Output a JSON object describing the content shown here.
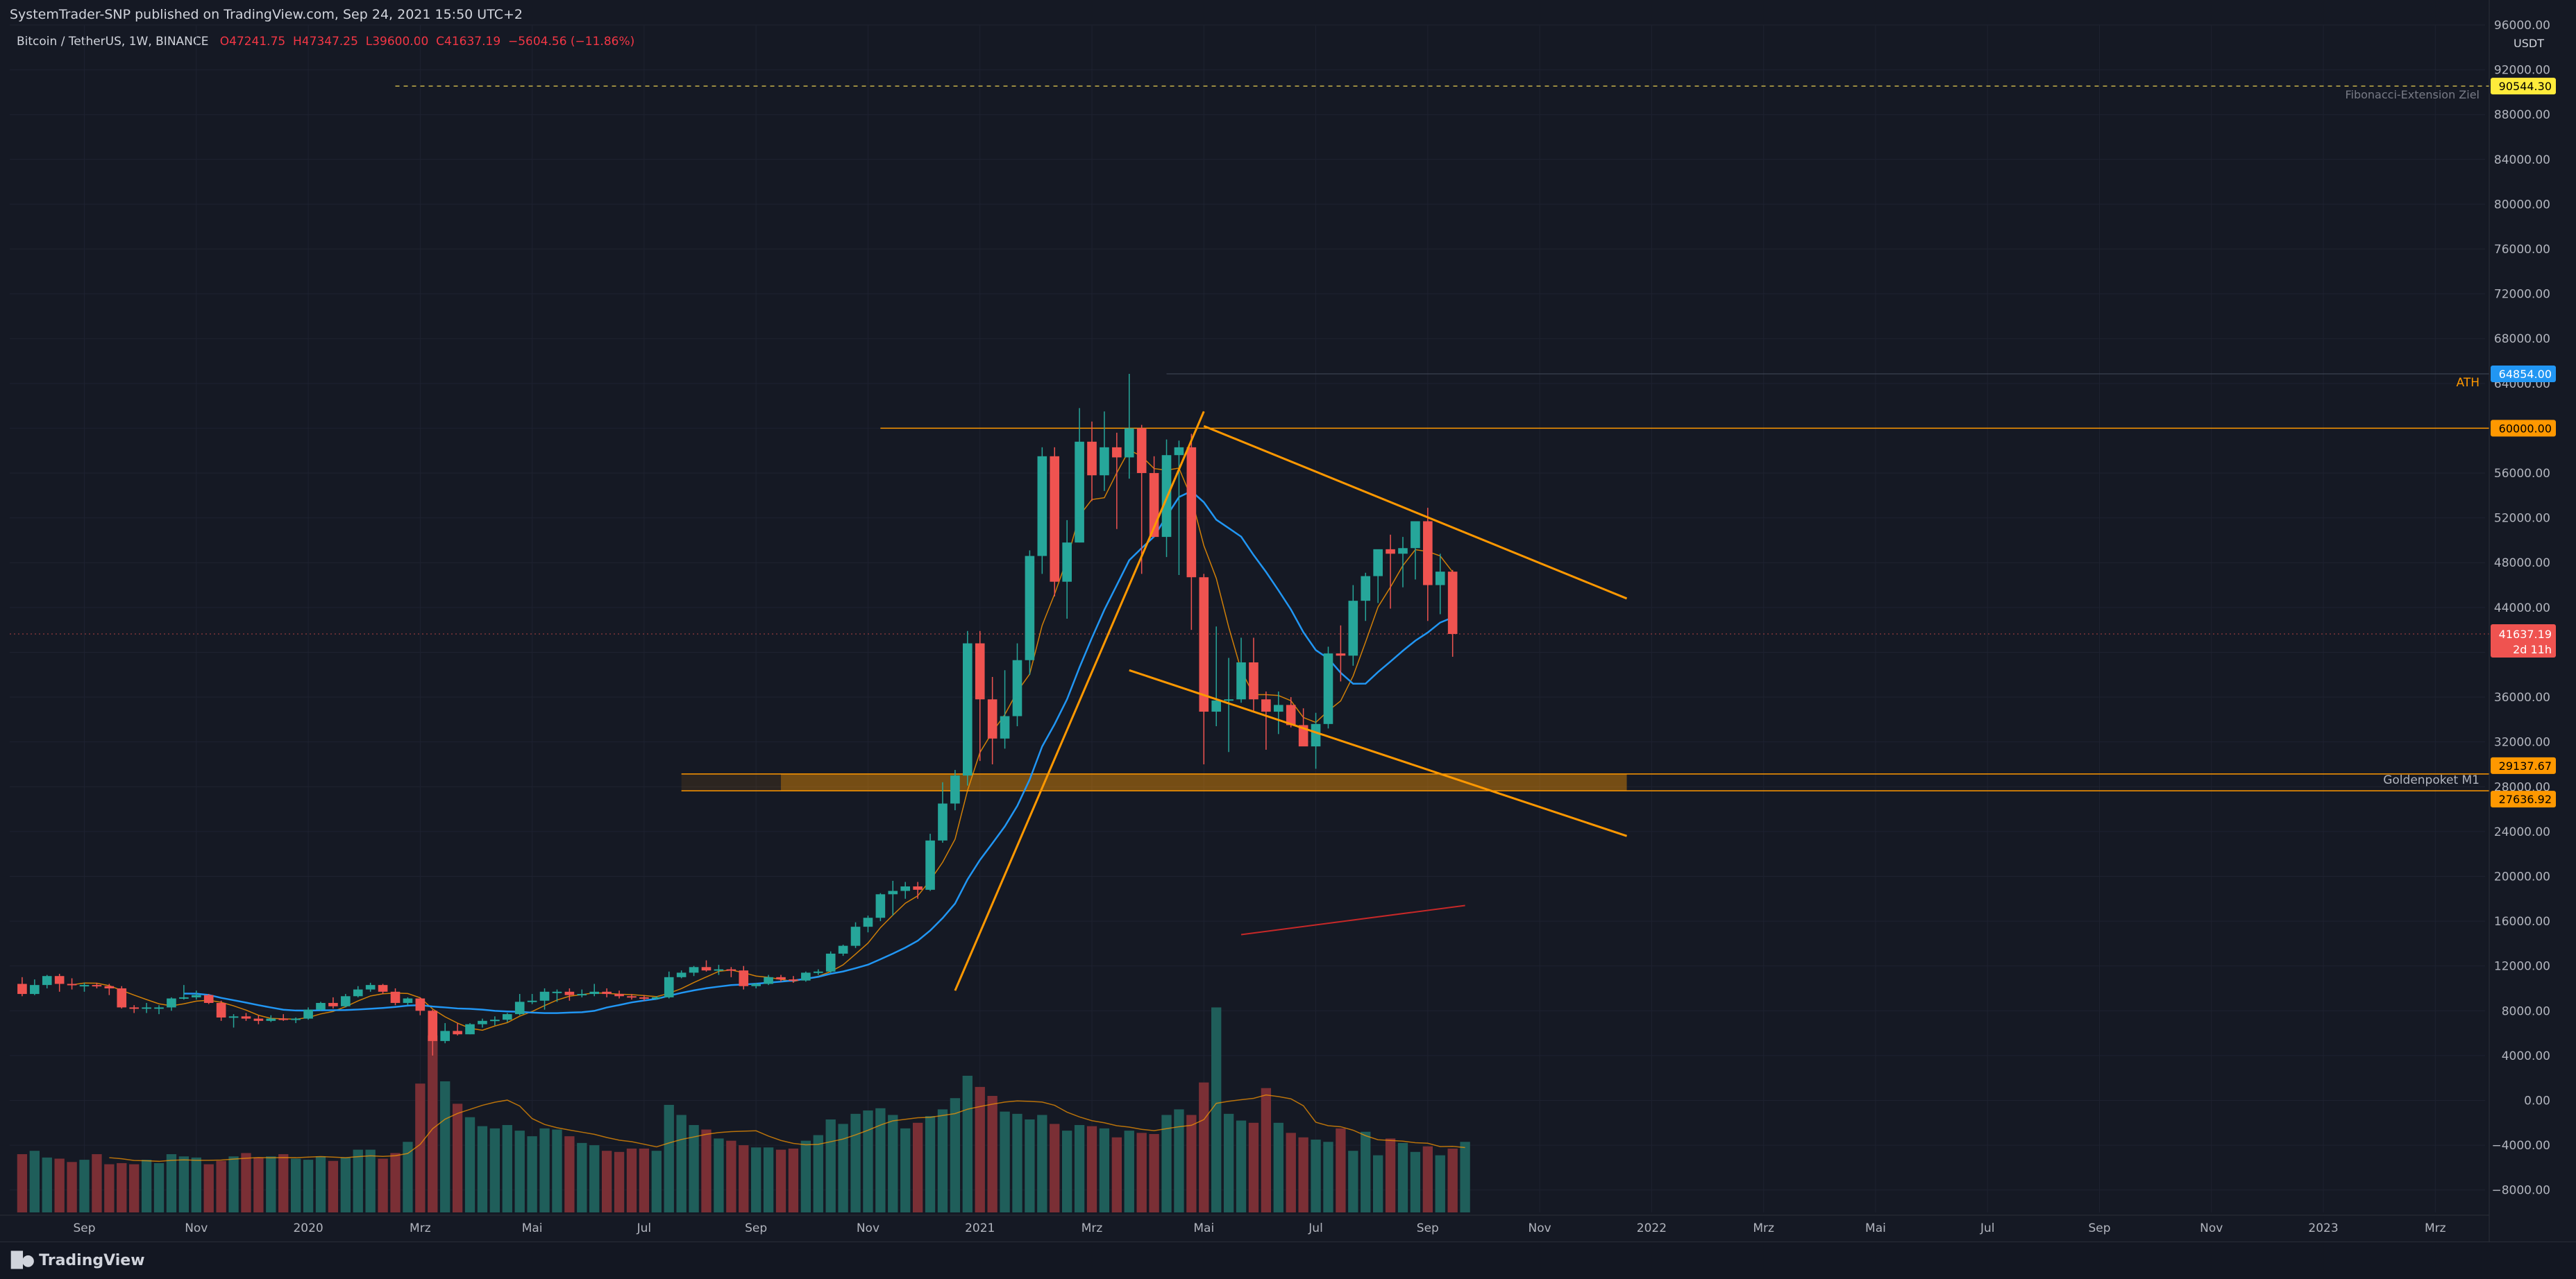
{
  "header": {
    "published": "SystemTrader-SNP published on TradingView.com, Sep 24, 2021 15:50 UTC+2",
    "symbol": "Bitcoin / TetherUS, 1W, BINANCE",
    "open": "O47241.75",
    "high": "H47347.25",
    "low": "L39600.00",
    "close": "C41637.19",
    "change": "−5604.56 (−11.86%)"
  },
  "footer": {
    "brand": "TradingView"
  },
  "chart_data": {
    "type": "candlestick",
    "currency": "USDT",
    "timeframe": "1W",
    "ylim": [
      -10000,
      96000
    ],
    "y_ticks": [
      -8000,
      -4000,
      0,
      4000,
      8000,
      12000,
      16000,
      20000,
      24000,
      28000,
      32000,
      36000,
      40000,
      44000,
      48000,
      52000,
      56000,
      60000,
      64000,
      68000,
      72000,
      76000,
      80000,
      84000,
      88000,
      92000,
      96000
    ],
    "y_tick_labels": [
      "−8000.00",
      "−4000.00",
      "0.00",
      "4000.00",
      "8000.00",
      "12000.00",
      "16000.00",
      "20000.00",
      "24000.00",
      "28000.00",
      "32000.00",
      "36000.00",
      "40000.00",
      "44000.00",
      "48000.00",
      "52000.00",
      "56000.00",
      "60000.00",
      "64000.00",
      "68000.00",
      "72000.00",
      "76000.00",
      "80000.00",
      "84000.00",
      "88000.00",
      "92000.00",
      "96000.00"
    ],
    "x_ticks": [
      {
        "label": "Sep",
        "week": 5
      },
      {
        "label": "Nov",
        "week": 14
      },
      {
        "label": "2020",
        "week": 23
      },
      {
        "label": "Mrz",
        "week": 32
      },
      {
        "label": "Mai",
        "week": 41
      },
      {
        "label": "Jul",
        "week": 50
      },
      {
        "label": "Sep",
        "week": 59
      },
      {
        "label": "Nov",
        "week": 68
      },
      {
        "label": "2021",
        "week": 77
      },
      {
        "label": "Mrz",
        "week": 86
      },
      {
        "label": "Mai",
        "week": 95
      },
      {
        "label": "Jul",
        "week": 104
      },
      {
        "label": "Sep",
        "week": 113
      },
      {
        "label": "Nov",
        "week": 122
      },
      {
        "label": "2022",
        "week": 131
      },
      {
        "label": "Mrz",
        "week": 140
      },
      {
        "label": "Mai",
        "week": 149
      },
      {
        "label": "Jul",
        "week": 158
      },
      {
        "label": "Sep",
        "week": 167
      },
      {
        "label": "Nov",
        "week": 176
      },
      {
        "label": "2023",
        "week": 185
      },
      {
        "label": "Mrz",
        "week": 194
      }
    ],
    "x_range_weeks": [
      -1,
      198
    ],
    "candles_ohlc": [
      [
        10400,
        11000,
        9300,
        9500
      ],
      [
        9500,
        10800,
        9400,
        10300
      ],
      [
        10300,
        11200,
        10000,
        11100
      ],
      [
        11100,
        11300,
        9700,
        10400
      ],
      [
        10400,
        10900,
        9900,
        10300
      ],
      [
        10300,
        10500,
        9700,
        10300
      ],
      [
        10300,
        10500,
        10000,
        10200
      ],
      [
        10200,
        10400,
        9400,
        10000
      ],
      [
        10000,
        10200,
        8200,
        8300
      ],
      [
        8300,
        8500,
        7800,
        8200
      ],
      [
        8200,
        8700,
        7800,
        8300
      ],
      [
        8300,
        8500,
        7700,
        8300
      ],
      [
        8300,
        9200,
        8000,
        9100
      ],
      [
        9100,
        10300,
        9000,
        9200
      ],
      [
        9200,
        9800,
        9000,
        9400
      ],
      [
        9400,
        9500,
        8600,
        8700
      ],
      [
        8700,
        8900,
        7100,
        7400
      ],
      [
        7400,
        7700,
        6500,
        7500
      ],
      [
        7500,
        7800,
        7100,
        7300
      ],
      [
        7300,
        7600,
        6800,
        7100
      ],
      [
        7100,
        7600,
        7000,
        7300
      ],
      [
        7300,
        7700,
        7100,
        7200
      ],
      [
        7200,
        7400,
        6900,
        7300
      ],
      [
        7300,
        8300,
        7200,
        8100
      ],
      [
        8100,
        8800,
        8000,
        8700
      ],
      [
        8700,
        9200,
        8200,
        8400
      ],
      [
        8400,
        9500,
        8300,
        9300
      ],
      [
        9300,
        10200,
        9200,
        9900
      ],
      [
        9900,
        10500,
        9700,
        10300
      ],
      [
        10300,
        10400,
        9500,
        9700
      ],
      [
        9700,
        10000,
        8500,
        8700
      ],
      [
        8700,
        9200,
        8500,
        9100
      ],
      [
        9100,
        9200,
        7600,
        8000
      ],
      [
        8000,
        8100,
        4000,
        5300
      ],
      [
        5300,
        6900,
        5100,
        6200
      ],
      [
        6200,
        6900,
        5800,
        5900
      ],
      [
        5900,
        6900,
        5900,
        6800
      ],
      [
        6800,
        7300,
        6500,
        7100
      ],
      [
        7100,
        7500,
        6700,
        7200
      ],
      [
        7200,
        7800,
        7000,
        7700
      ],
      [
        7700,
        9500,
        7600,
        8800
      ],
      [
        8800,
        9500,
        8600,
        8900
      ],
      [
        8900,
        10000,
        8100,
        9700
      ],
      [
        9700,
        9900,
        8800,
        9700
      ],
      [
        9700,
        10000,
        8900,
        9400
      ],
      [
        9400,
        9900,
        9200,
        9500
      ],
      [
        9500,
        10400,
        9300,
        9700
      ],
      [
        9700,
        10000,
        9200,
        9500
      ],
      [
        9500,
        9800,
        9100,
        9300
      ],
      [
        9300,
        9500,
        9000,
        9200
      ],
      [
        9200,
        9400,
        8900,
        9100
      ],
      [
        9100,
        9300,
        9000,
        9200
      ],
      [
        9200,
        11500,
        9100,
        11000
      ],
      [
        11000,
        11600,
        10900,
        11400
      ],
      [
        11400,
        12000,
        11100,
        11900
      ],
      [
        11900,
        12500,
        11500,
        11600
      ],
      [
        11600,
        12100,
        11200,
        11700
      ],
      [
        11700,
        11900,
        11000,
        11600
      ],
      [
        11600,
        12000,
        9900,
        10200
      ],
      [
        10200,
        10500,
        10000,
        10400
      ],
      [
        10400,
        11200,
        10300,
        11000
      ],
      [
        11000,
        11200,
        10600,
        10800
      ],
      [
        10800,
        11100,
        10500,
        10700
      ],
      [
        10700,
        11500,
        10600,
        11400
      ],
      [
        11400,
        11700,
        11200,
        11500
      ],
      [
        11500,
        13300,
        11400,
        13100
      ],
      [
        13100,
        13900,
        12900,
        13800
      ],
      [
        13800,
        15900,
        13600,
        15500
      ],
      [
        15500,
        16500,
        15000,
        16300
      ],
      [
        16300,
        18500,
        16000,
        18400
      ],
      [
        18400,
        19600,
        16500,
        18700
      ],
      [
        18700,
        19500,
        18000,
        19100
      ],
      [
        19100,
        19500,
        18000,
        18800
      ],
      [
        18800,
        23800,
        18700,
        23200
      ],
      [
        23200,
        28400,
        23000,
        26500
      ],
      [
        26500,
        29500,
        25900,
        29000
      ],
      [
        29000,
        41900,
        28100,
        40800
      ],
      [
        40800,
        41900,
        30300,
        35800
      ],
      [
        35800,
        37800,
        30000,
        32300
      ],
      [
        32300,
        38400,
        31400,
        34300
      ],
      [
        34300,
        40800,
        33400,
        39300
      ],
      [
        39300,
        49100,
        38000,
        48600
      ],
      [
        48600,
        58300,
        47000,
        57500
      ],
      [
        57500,
        58300,
        45000,
        46300
      ],
      [
        46300,
        51800,
        43000,
        49800
      ],
      [
        49800,
        61800,
        49800,
        58800
      ],
      [
        58800,
        60600,
        53500,
        55800
      ],
      [
        55800,
        61500,
        54400,
        58300
      ],
      [
        58300,
        59600,
        51000,
        57400
      ],
      [
        57400,
        64854,
        55500,
        60000
      ],
      [
        60000,
        60300,
        47000,
        56000
      ],
      [
        56000,
        57500,
        50500,
        50300
      ],
      [
        50300,
        59000,
        48500,
        57600
      ],
      [
        57600,
        58900,
        46900,
        58300
      ],
      [
        58300,
        59500,
        42000,
        46700
      ],
      [
        46700,
        47000,
        30000,
        34700
      ],
      [
        34700,
        42300,
        33400,
        35700
      ],
      [
        35700,
        39500,
        31100,
        35800
      ],
      [
        35800,
        41300,
        35500,
        39100
      ],
      [
        39100,
        41300,
        34800,
        35800
      ],
      [
        35800,
        36500,
        31300,
        34700
      ],
      [
        34700,
        36500,
        32700,
        35300
      ],
      [
        35300,
        36000,
        33300,
        33500
      ],
      [
        33500,
        35000,
        32100,
        31600
      ],
      [
        31600,
        34600,
        29600,
        33600
      ],
      [
        33600,
        40500,
        33200,
        39900
      ],
      [
        39900,
        42400,
        37400,
        39700
      ],
      [
        39700,
        46000,
        38800,
        44600
      ],
      [
        44600,
        47100,
        42800,
        46800
      ],
      [
        46800,
        48100,
        44400,
        49200
      ],
      [
        49200,
        50500,
        43900,
        48800
      ],
      [
        48800,
        50300,
        45800,
        49300
      ],
      [
        49300,
        50600,
        46500,
        51700
      ],
      [
        51700,
        52900,
        42800,
        46000
      ],
      [
        46000,
        48800,
        43400,
        47200
      ],
      [
        47200,
        47347.25,
        39600,
        41637.19
      ]
    ],
    "volume": [
      5200,
      5500,
      4900,
      4800,
      4500,
      4700,
      5200,
      4300,
      4400,
      4300,
      4700,
      4400,
      5200,
      5000,
      4900,
      4300,
      4600,
      5000,
      5300,
      4900,
      5000,
      5200,
      4800,
      4700,
      5000,
      4600,
      4900,
      5600,
      5600,
      4800,
      5300,
      6300,
      11500,
      15800,
      11700,
      9700,
      8500,
      7700,
      7500,
      7800,
      7300,
      6800,
      7500,
      7400,
      6800,
      6200,
      6000,
      5500,
      5400,
      5700,
      5700,
      5500,
      9600,
      8700,
      7800,
      7400,
      6600,
      6400,
      6000,
      5800,
      5800,
      5600,
      5700,
      6400,
      6900,
      8300,
      7900,
      8800,
      9100,
      9300,
      8700,
      7500,
      8000,
      8600,
      9200,
      10200,
      12200,
      11200,
      10400,
      9000,
      8800,
      8300,
      8700,
      7900,
      7300,
      7800,
      7700,
      7500,
      6700,
      7300,
      7100,
      7000,
      8700,
      9200,
      8700,
      11600,
      18300,
      8800,
      8200,
      8000,
      11100,
      8000,
      7100,
      6700,
      6500,
      6300,
      7500,
      5500,
      7200,
      5100,
      6600,
      6200,
      5400,
      5900,
      5100,
      5700,
      6300
    ],
    "overlays": {
      "Fibonacci-Extension Ziel": 90544.3,
      "ATH": 64854.0,
      "level_60000": 60000.0,
      "last_price": 41637.19,
      "last_price_countdown": "2d 11h",
      "Goldenpoket M1": [
        27636.92,
        29137.67
      ]
    },
    "annotations": [
      "Fibonacci-Extension Ziel",
      "ATH",
      "Goldenpoket M1"
    ],
    "price_labels": [
      "90544.30",
      "64854.00",
      "60000.00",
      "41637.19",
      "29137.67",
      "27636.92"
    ],
    "trendlines": [
      {
        "from": [
          75,
          9800
        ],
        "to": [
          95,
          61500
        ]
      },
      {
        "from": [
          95,
          60200
        ],
        "to": [
          129,
          44800
        ]
      },
      {
        "from": [
          89,
          38400
        ],
        "to": [
          129,
          23600
        ]
      }
    ],
    "colors": {
      "up": "#26a69a",
      "down": "#ef5350",
      "trend": "#ff9800",
      "ma_fast": "#ff9800",
      "ma_slow": "#2196f3",
      "ma_long": "#c62828"
    }
  }
}
